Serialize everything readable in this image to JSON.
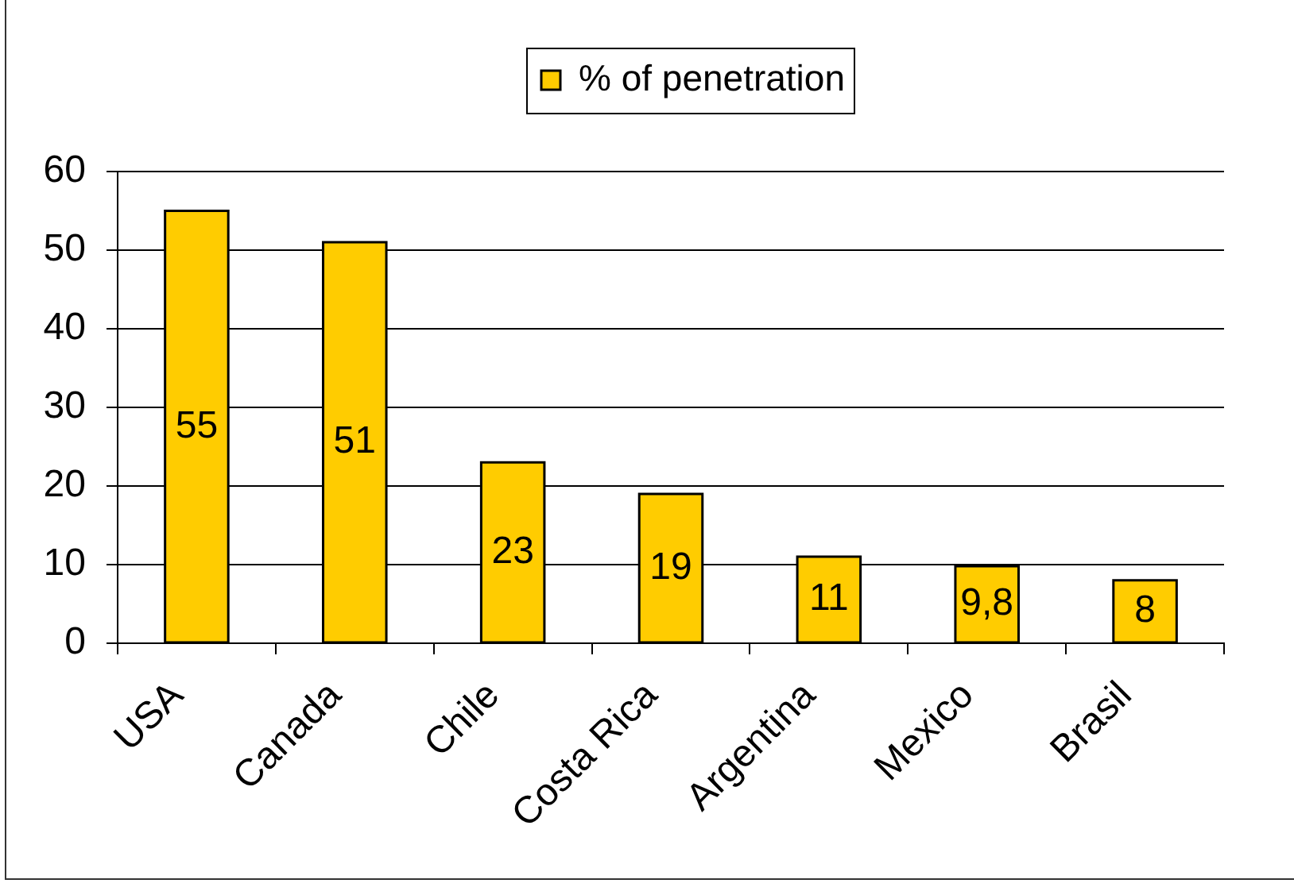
{
  "chart_data": {
    "type": "bar",
    "categories": [
      "USA",
      "Canada",
      "Chile",
      "Costa Rica",
      "Argentina",
      "Mexico",
      "Brasil"
    ],
    "series": [
      {
        "name": "% of penetration",
        "color": "#ffcc00",
        "values": [
          55,
          51,
          23,
          19,
          11,
          9.8,
          8
        ],
        "value_labels": [
          "55",
          "51",
          "23",
          "19",
          "11",
          "9,8",
          "8"
        ]
      }
    ],
    "ylim": [
      0,
      60
    ],
    "yticks": [
      0,
      10,
      20,
      30,
      40,
      50,
      60
    ],
    "grid": "y",
    "legend": "top"
  }
}
